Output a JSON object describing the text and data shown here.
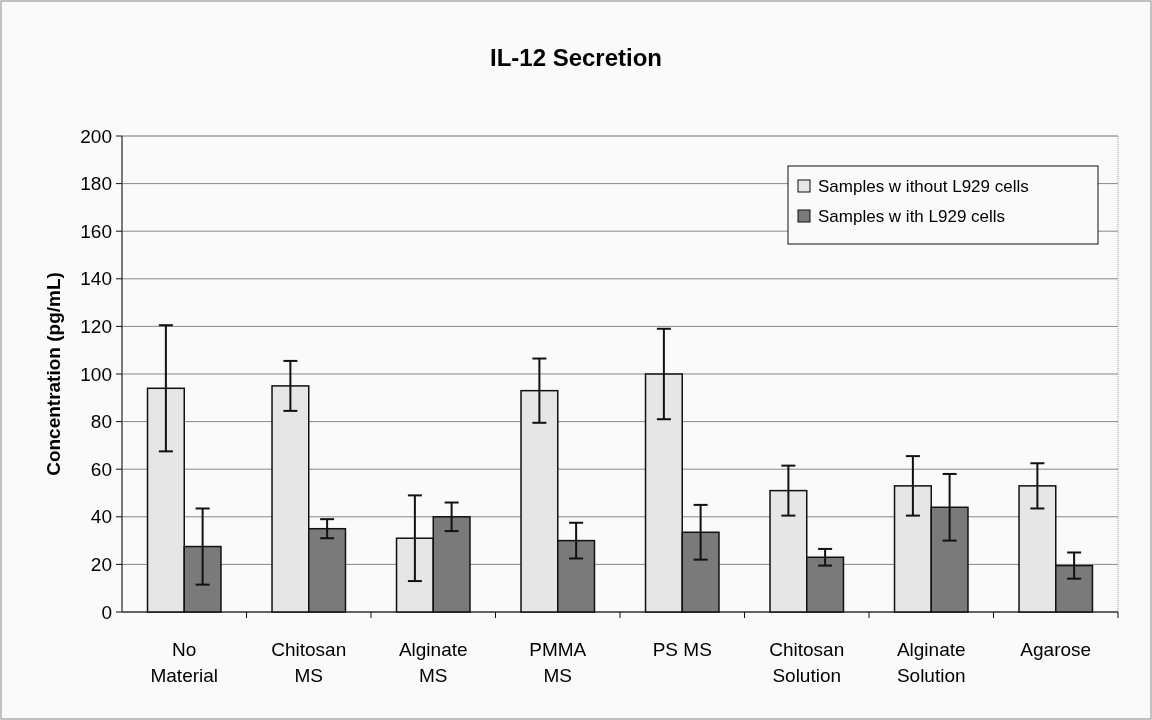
{
  "chart_data": {
    "type": "bar",
    "title": "IL-12 Secretion",
    "ylabel": "Concentration (pg/mL)",
    "categories": [
      "No\nMaterial",
      "Chitosan\nMS",
      "Alginate\nMS",
      "PMMA\nMS",
      "PS MS",
      "Chitosan\nSolution",
      "Alginate\nSolution",
      "Agarose"
    ],
    "series": [
      {
        "name": "Samples w ithout L929 cells",
        "color": "#e6e6e6",
        "values": [
          94,
          95,
          31,
          93,
          100,
          51,
          53,
          53
        ],
        "errors": [
          26.5,
          10.5,
          18,
          13.5,
          19,
          10.5,
          12.5,
          9.5
        ]
      },
      {
        "name": "Samples w ith L929 cells",
        "color": "#7a7a7a",
        "values": [
          27.5,
          35,
          40,
          30,
          33.5,
          23,
          44,
          19.5
        ],
        "errors": [
          16,
          4,
          6,
          7.5,
          11.5,
          3.5,
          14,
          5.5
        ]
      }
    ],
    "ylim": [
      0,
      200
    ],
    "yticks": [
      0,
      20,
      40,
      60,
      80,
      100,
      120,
      140,
      160,
      180,
      200
    ],
    "grid": "y",
    "legend": "top right"
  }
}
